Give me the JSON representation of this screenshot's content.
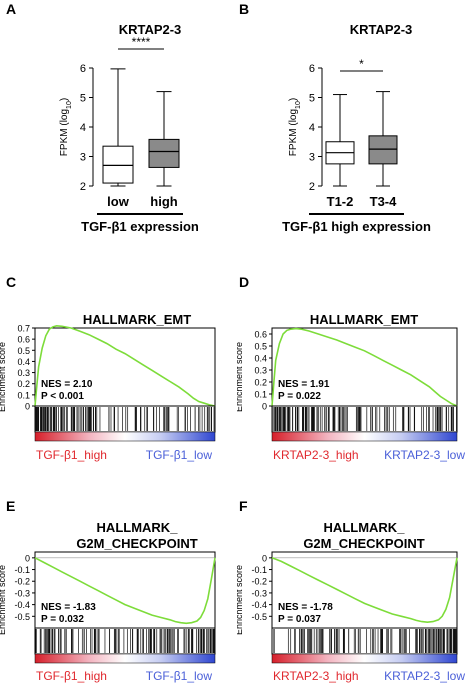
{
  "chart_data": [
    {
      "panel_label": "A",
      "type": "box",
      "title": "KRTAP2-3",
      "ylabel": "FPKM (log10)",
      "ylim": [
        2,
        6
      ],
      "yticks": [
        2,
        3,
        4,
        5,
        6
      ],
      "categories": [
        "low",
        "high"
      ],
      "group_label": "TGF-β1 expression",
      "significance": "****",
      "boxes": [
        {
          "name": "low",
          "min": 2.0,
          "q1": 2.1,
          "median": 2.7,
          "q3": 3.35,
          "max": 5.97,
          "color": "#ffffff"
        },
        {
          "name": "high",
          "min": 2.0,
          "q1": 2.63,
          "median": 3.17,
          "q3": 3.58,
          "max": 5.2,
          "color": "#8a8a8a"
        }
      ]
    },
    {
      "panel_label": "B",
      "type": "box",
      "title": "KRTAP2-3",
      "ylabel": "FPKM (log10)",
      "ylim": [
        2,
        6
      ],
      "yticks": [
        2,
        3,
        4,
        5,
        6
      ],
      "categories": [
        "T1-2",
        "T3-4"
      ],
      "group_label": "TGF-β1 high expression",
      "significance": "*",
      "boxes": [
        {
          "name": "T1-2",
          "min": 2.0,
          "q1": 2.75,
          "median": 3.13,
          "q3": 3.5,
          "max": 5.1,
          "color": "#ffffff"
        },
        {
          "name": "T3-4",
          "min": 2.0,
          "q1": 2.75,
          "median": 3.25,
          "q3": 3.7,
          "max": 5.2,
          "color": "#8a8a8a"
        }
      ]
    },
    {
      "panel_label": "C",
      "type": "line",
      "title": "HALLMARK_EMT",
      "ylabel": "Enrichment score",
      "ylim": [
        0,
        0.7
      ],
      "yticks": [
        0,
        0.1,
        0.2,
        0.3,
        0.4,
        0.5,
        0.6,
        0.7
      ],
      "nes_text": "NES = 2.10",
      "p_text": "P < 0.001",
      "left_label": "TGF-β1_high",
      "right_label": "TGF-β1_low",
      "x": [
        0,
        0.01,
        0.02,
        0.04,
        0.06,
        0.08,
        0.1,
        0.12,
        0.15,
        0.2,
        0.25,
        0.3,
        0.35,
        0.4,
        0.45,
        0.5,
        0.55,
        0.6,
        0.65,
        0.7,
        0.75,
        0.8,
        0.85,
        0.88,
        0.91,
        0.94,
        0.97,
        1.0
      ],
      "values": [
        0,
        0.18,
        0.35,
        0.52,
        0.63,
        0.69,
        0.71,
        0.72,
        0.715,
        0.7,
        0.67,
        0.64,
        0.6,
        0.56,
        0.51,
        0.47,
        0.42,
        0.37,
        0.32,
        0.27,
        0.22,
        0.17,
        0.11,
        0.07,
        0.04,
        0.025,
        0.01,
        0
      ]
    },
    {
      "panel_label": "D",
      "type": "line",
      "title": "HALLMARK_EMT",
      "ylabel": "Enrichment score",
      "ylim": [
        0,
        0.65
      ],
      "yticks": [
        0,
        0.1,
        0.2,
        0.3,
        0.4,
        0.5,
        0.6
      ],
      "nes_text": "NES = 1.91",
      "p_text": "P = 0.022",
      "left_label": "KRTAP2-3_high",
      "right_label": "KRTAP2-3_low",
      "x": [
        0,
        0.01,
        0.02,
        0.04,
        0.06,
        0.08,
        0.1,
        0.13,
        0.16,
        0.2,
        0.25,
        0.3,
        0.35,
        0.4,
        0.45,
        0.5,
        0.55,
        0.6,
        0.65,
        0.7,
        0.75,
        0.8,
        0.85,
        0.88,
        0.91,
        0.94,
        0.97,
        1.0
      ],
      "values": [
        0,
        0.2,
        0.38,
        0.52,
        0.6,
        0.63,
        0.64,
        0.645,
        0.64,
        0.625,
        0.6,
        0.575,
        0.55,
        0.52,
        0.49,
        0.46,
        0.42,
        0.38,
        0.34,
        0.3,
        0.26,
        0.21,
        0.16,
        0.12,
        0.08,
        0.05,
        0.02,
        0
      ]
    },
    {
      "panel_label": "E",
      "type": "line",
      "title": "HALLMARK_ G2M_CHECKPOINT",
      "title_lines": [
        "HALLMARK_",
        "G2M_CHECKPOINT"
      ],
      "ylabel": "Enrichment score",
      "ylim": [
        -0.6,
        0.05
      ],
      "yticks": [
        0,
        -0.1,
        -0.2,
        -0.3,
        -0.4,
        -0.5
      ],
      "nes_text": "NES = -1.83",
      "p_text": "P = 0.032",
      "left_label": "TGF-β1_high",
      "right_label": "TGF-β1_low",
      "x": [
        0,
        0.05,
        0.1,
        0.15,
        0.2,
        0.25,
        0.3,
        0.35,
        0.4,
        0.45,
        0.5,
        0.55,
        0.6,
        0.65,
        0.7,
        0.75,
        0.78,
        0.81,
        0.84,
        0.87,
        0.9,
        0.92,
        0.94,
        0.96,
        0.98,
        1.0
      ],
      "values": [
        0,
        -0.04,
        -0.08,
        -0.12,
        -0.16,
        -0.2,
        -0.24,
        -0.28,
        -0.32,
        -0.36,
        -0.4,
        -0.43,
        -0.46,
        -0.49,
        -0.51,
        -0.53,
        -0.545,
        -0.555,
        -0.56,
        -0.555,
        -0.54,
        -0.51,
        -0.45,
        -0.35,
        -0.18,
        0
      ]
    },
    {
      "panel_label": "F",
      "type": "line",
      "title": "HALLMARK_ G2M_CHECKPOINT",
      "title_lines": [
        "HALLMARK_",
        "G2M_CHECKPOINT"
      ],
      "ylabel": "Enrichment score",
      "ylim": [
        -0.6,
        0.05
      ],
      "yticks": [
        0,
        -0.1,
        -0.2,
        -0.3,
        -0.4,
        -0.5
      ],
      "nes_text": "NES = -1.78",
      "p_text": "P = 0.037",
      "left_label": "KRTAP2-3_high",
      "right_label": "KRTAP2-3_low",
      "x": [
        0,
        0.05,
        0.1,
        0.15,
        0.2,
        0.25,
        0.3,
        0.35,
        0.4,
        0.45,
        0.5,
        0.55,
        0.6,
        0.65,
        0.7,
        0.75,
        0.78,
        0.81,
        0.84,
        0.87,
        0.9,
        0.92,
        0.94,
        0.96,
        0.98,
        1.0
      ],
      "values": [
        0,
        -0.03,
        -0.07,
        -0.11,
        -0.15,
        -0.19,
        -0.23,
        -0.27,
        -0.31,
        -0.35,
        -0.39,
        -0.42,
        -0.45,
        -0.48,
        -0.5,
        -0.52,
        -0.535,
        -0.545,
        -0.55,
        -0.545,
        -0.53,
        -0.5,
        -0.44,
        -0.34,
        -0.17,
        0
      ]
    }
  ],
  "colors": {
    "curve": "#7ddc3a",
    "high_label": "#e0282e",
    "low_label": "#4a5fd8",
    "box_high_fill": "#8a8a8a"
  }
}
